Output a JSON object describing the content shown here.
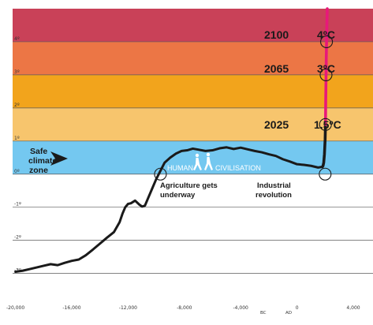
{
  "chart_data": {
    "type": "line",
    "title": "",
    "xlabel": "",
    "ylabel": "",
    "xlim": [
      -20200,
      5400
    ],
    "ylim": [
      -3.2,
      5.0
    ],
    "x_ticks": [
      -20000,
      -16000,
      -12000,
      -8000,
      -4000,
      0,
      4000
    ],
    "x_tick_labels": [
      "-20,000",
      "-16,000",
      "-12,000",
      "-8,000",
      "-4,000",
      "0",
      "4,000"
    ],
    "era_labels": {
      "bc": "BC",
      "ad": "AD"
    },
    "y_ticks": [
      -3,
      -2,
      -1,
      0,
      1,
      2,
      3,
      4
    ],
    "y_tick_labels": [
      "-3º",
      "-2º",
      "-1º",
      "0º",
      "1º",
      "2º",
      "3º",
      "4º"
    ],
    "bands": [
      {
        "from": 4,
        "to": 5,
        "color": "#c94158"
      },
      {
        "from": 3,
        "to": 4,
        "color": "#ec7645"
      },
      {
        "from": 2,
        "to": 3,
        "color": "#f2a41c"
      },
      {
        "from": 1,
        "to": 2,
        "color": "#f7c56d"
      },
      {
        "from": 0,
        "to": 1,
        "color": "#74c8f0"
      }
    ],
    "series": [
      {
        "color": "#1a1a1a",
        "x": [
          -20000,
          -19500,
          -19000,
          -18500,
          -18000,
          -17500,
          -17000,
          -16500,
          -16000,
          -15500,
          -15000,
          -14500,
          -14000,
          -13500,
          -13000,
          -12600,
          -12400,
          -12200,
          -12000,
          -11800,
          -11500,
          -11200,
          -11000,
          -10800,
          -10600,
          -10300,
          -10000,
          -9700,
          -9400,
          -9000,
          -8600,
          -8200,
          -7800,
          -7400,
          -7000,
          -6500,
          -6000,
          -5500,
          -5000,
          -4500,
          -4000,
          -3500,
          -3000,
          -2500,
          -2000,
          -1500,
          -1000,
          -500,
          0,
          500,
          1000,
          1500,
          1800
        ],
        "y": [
          -2.95,
          -2.92,
          -2.87,
          -2.82,
          -2.77,
          -2.72,
          -2.75,
          -2.68,
          -2.62,
          -2.58,
          -2.45,
          -2.28,
          -2.1,
          -1.92,
          -1.75,
          -1.45,
          -1.2,
          -1.0,
          -0.9,
          -0.88,
          -0.8,
          -0.92,
          -0.98,
          -0.95,
          -0.75,
          -0.45,
          -0.15,
          0.1,
          0.35,
          0.5,
          0.62,
          0.7,
          0.72,
          0.77,
          0.74,
          0.7,
          0.72,
          0.78,
          0.81,
          0.76,
          0.8,
          0.75,
          0.7,
          0.66,
          0.6,
          0.55,
          0.45,
          0.38,
          0.3,
          0.28,
          0.25,
          0.2,
          0.22
        ]
      },
      {
        "color": "#1a1a1a",
        "x": [
          1800,
          1850,
          1900,
          1950,
          2000,
          2025
        ],
        "y": [
          0.22,
          0.25,
          0.35,
          0.6,
          1.05,
          1.5
        ]
      },
      {
        "color": "#e8187a",
        "x": [
          2025,
          2040,
          2065,
          2080,
          2100,
          2120,
          2150
        ],
        "y": [
          1.5,
          2.2,
          3.0,
          3.5,
          4.0,
          4.5,
          5.0
        ]
      }
    ],
    "markers": [
      {
        "x": -9700,
        "y": 0.0,
        "label": "Agriculture gets underway"
      },
      {
        "x": 2000,
        "y": 0.0,
        "label": "Industrial revolution"
      },
      {
        "x": 2025,
        "y": 1.5,
        "year": "2025",
        "temp": "1.5ºC"
      },
      {
        "x": 2065,
        "y": 3.0,
        "year": "2065",
        "temp": "3ºC"
      },
      {
        "x": 2100,
        "y": 4.0,
        "year": "2100",
        "temp": "4ºC"
      }
    ],
    "annotations": {
      "safe_zone": [
        "Safe",
        "climate",
        "zone"
      ],
      "human": "HUMAN",
      "civilisation": "CIVILISATION",
      "agriculture_lines": [
        "Agriculture gets",
        "underway"
      ],
      "industrial_lines": [
        "Industrial",
        "revolution"
      ]
    },
    "grid": true,
    "legend": "none"
  }
}
